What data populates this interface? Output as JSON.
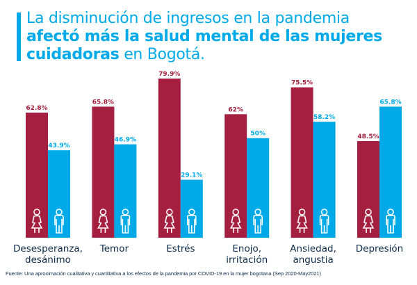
{
  "title": {
    "line1": "La disminución de ingresos en la pandemia",
    "line2_bold": "afectó más la salud mental de las mujeres",
    "line3_bold": "cuidadoras",
    "line3_rest": " en Bogotá."
  },
  "colors": {
    "women": "#a51f40",
    "men": "#00a9e8",
    "title": "#00a9e8",
    "text": "#0b2c4a"
  },
  "footer": "Fuente: Una aproximación cualitativa y cuantitativa a los efectos de la pandemia por COVID-19 en la mujer bogotana (Sep 2020-May2021)",
  "chart_data": {
    "type": "bar",
    "title": "La disminución de ingresos en la pandemia afectó más la salud mental de las mujeres cuidadoras en Bogotá.",
    "xlabel": "",
    "ylabel": "",
    "ylim": [
      0,
      80
    ],
    "grid": false,
    "legend": "icons at base of bars (woman icon = mujeres, man icon = hombres)",
    "categories": [
      [
        "Desesperanza,",
        "desánimo"
      ],
      [
        "Temor"
      ],
      [
        "Estrés"
      ],
      [
        "Enojo,",
        "irritación"
      ],
      [
        "Ansiedad,",
        "angustia"
      ],
      [
        "Depresión"
      ]
    ],
    "series": [
      {
        "name": "Mujeres",
        "icon": "woman-icon",
        "values": [
          62.8,
          65.8,
          79.9,
          62,
          75.5,
          48.5
        ],
        "labels": [
          "62.8%",
          "65.8%",
          "79.9%",
          "62%",
          "75.5%",
          "48.5%"
        ]
      },
      {
        "name": "Hombres",
        "icon": "man-icon",
        "values": [
          43.9,
          46.9,
          29.1,
          50,
          58.2,
          65.8
        ],
        "labels": [
          "43.9%",
          "46.9%",
          "29.1%",
          "50%",
          "58.2%",
          "65.8%"
        ]
      }
    ]
  }
}
